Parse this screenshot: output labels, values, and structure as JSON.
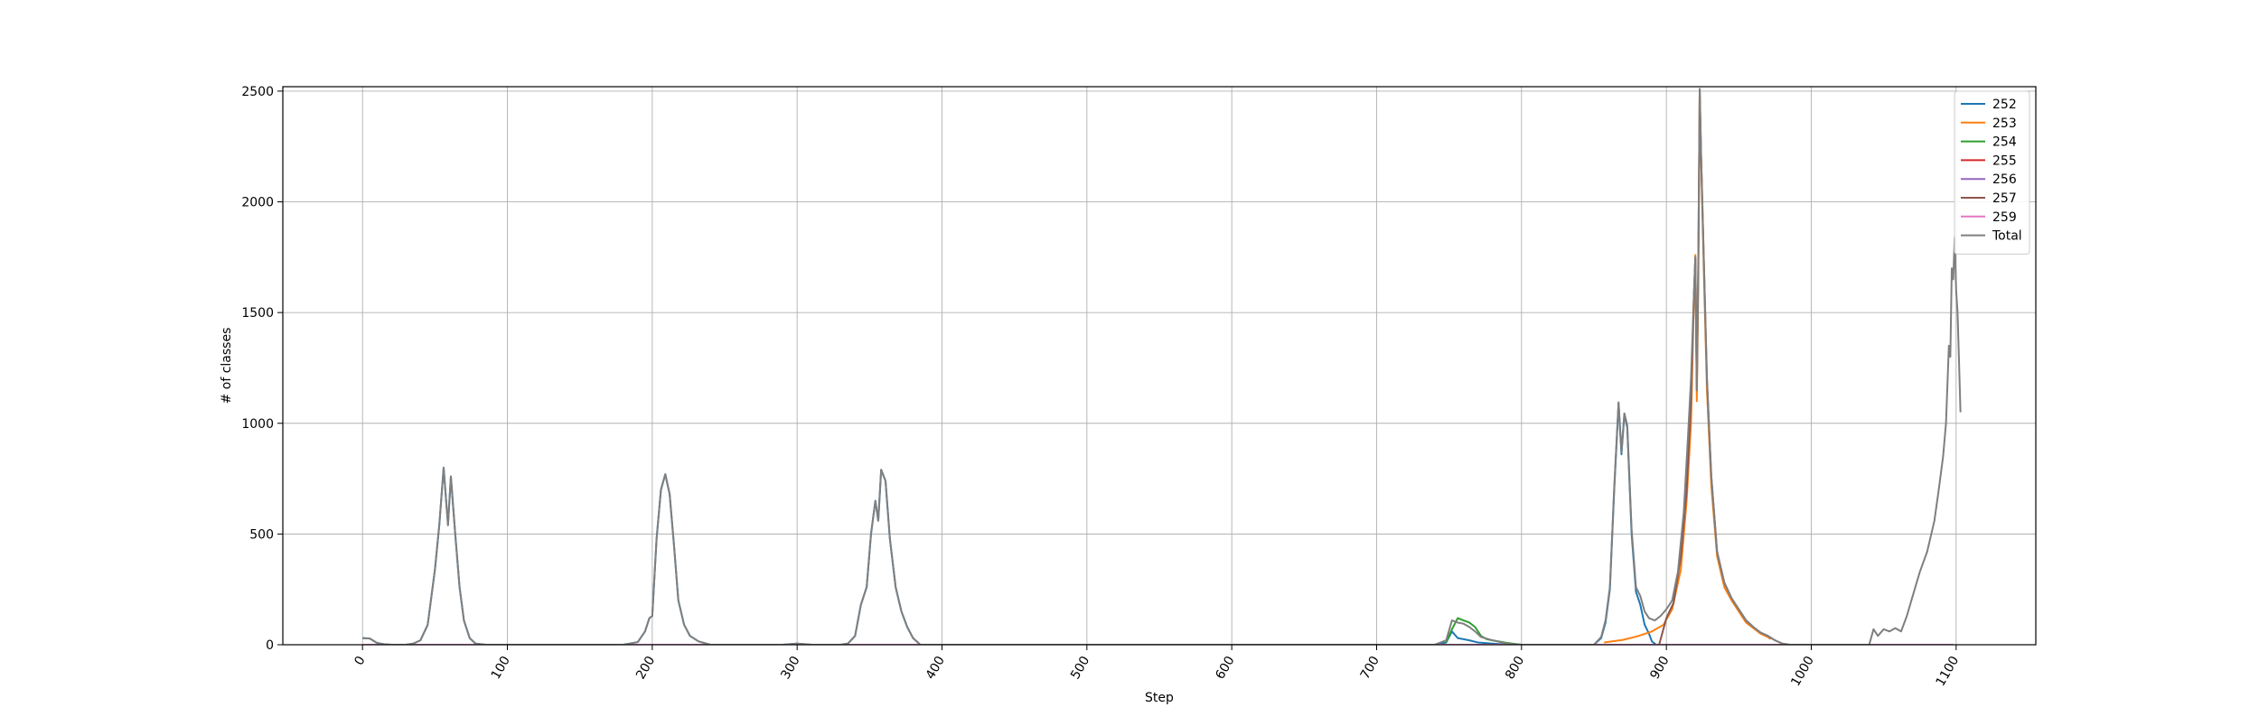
{
  "chart_data": {
    "type": "line",
    "xlabel": "Step",
    "ylabel": "# of classes",
    "xlim": [
      -55,
      1155
    ],
    "ylim": [
      0,
      2520
    ],
    "xticks": [
      0,
      100,
      200,
      300,
      400,
      500,
      600,
      700,
      800,
      900,
      1000,
      1100
    ],
    "yticks": [
      0,
      500,
      1000,
      1500,
      2000,
      2500
    ],
    "x_tick_rotation": 60,
    "grid": true,
    "legend_position": "top-right",
    "series": [
      {
        "name": "252",
        "color": "#1f77b4",
        "points": [
          [
            0,
            30
          ],
          [
            5,
            28
          ],
          [
            10,
            8
          ],
          [
            15,
            2
          ],
          [
            20,
            0
          ],
          [
            30,
            0
          ],
          [
            35,
            5
          ],
          [
            40,
            20
          ],
          [
            45,
            90
          ],
          [
            50,
            340
          ],
          [
            53,
            540
          ],
          [
            56,
            800
          ],
          [
            59,
            540
          ],
          [
            61,
            760
          ],
          [
            64,
            500
          ],
          [
            67,
            260
          ],
          [
            70,
            110
          ],
          [
            74,
            30
          ],
          [
            78,
            5
          ],
          [
            85,
            0
          ],
          [
            180,
            0
          ],
          [
            190,
            12
          ],
          [
            195,
            60
          ],
          [
            198,
            120
          ],
          [
            200,
            130
          ],
          [
            203,
            480
          ],
          [
            206,
            700
          ],
          [
            209,
            770
          ],
          [
            212,
            680
          ],
          [
            215,
            450
          ],
          [
            218,
            200
          ],
          [
            222,
            90
          ],
          [
            226,
            40
          ],
          [
            232,
            15
          ],
          [
            240,
            0
          ],
          [
            290,
            0
          ],
          [
            300,
            5
          ],
          [
            310,
            0
          ],
          [
            330,
            0
          ],
          [
            335,
            5
          ],
          [
            340,
            40
          ],
          [
            344,
            180
          ],
          [
            348,
            260
          ],
          [
            351,
            500
          ],
          [
            354,
            650
          ],
          [
            356,
            560
          ],
          [
            358,
            790
          ],
          [
            361,
            740
          ],
          [
            364,
            480
          ],
          [
            368,
            260
          ],
          [
            372,
            150
          ],
          [
            376,
            80
          ],
          [
            380,
            30
          ],
          [
            385,
            0
          ],
          [
            740,
            0
          ],
          [
            748,
            10
          ],
          [
            752,
            60
          ],
          [
            756,
            30
          ],
          [
            760,
            25
          ],
          [
            764,
            20
          ],
          [
            770,
            10
          ],
          [
            780,
            5
          ],
          [
            790,
            0
          ],
          [
            850,
            0
          ],
          [
            855,
            30
          ],
          [
            858,
            100
          ],
          [
            861,
            250
          ],
          [
            864,
            700
          ],
          [
            867,
            1090
          ],
          [
            869,
            860
          ],
          [
            871,
            1040
          ],
          [
            873,
            980
          ],
          [
            876,
            500
          ],
          [
            879,
            240
          ],
          [
            882,
            180
          ],
          [
            885,
            90
          ],
          [
            888,
            50
          ],
          [
            890,
            15
          ],
          [
            893,
            0
          ],
          [
            1098,
            0
          ]
        ]
      },
      {
        "name": "253",
        "color": "#ff7f0e",
        "points": [
          [
            857,
            10
          ],
          [
            870,
            22
          ],
          [
            880,
            38
          ],
          [
            890,
            60
          ],
          [
            898,
            90
          ],
          [
            904,
            160
          ],
          [
            910,
            340
          ],
          [
            914,
            650
          ],
          [
            917,
            1000
          ],
          [
            919,
            1560
          ],
          [
            920,
            1760
          ],
          [
            921,
            1100
          ],
          [
            922,
            1600
          ],
          [
            923,
            2500
          ],
          [
            924,
            2180
          ],
          [
            926,
            1650
          ],
          [
            928,
            1150
          ],
          [
            931,
            720
          ],
          [
            935,
            400
          ],
          [
            940,
            260
          ],
          [
            945,
            200
          ],
          [
            950,
            150
          ],
          [
            955,
            100
          ],
          [
            960,
            75
          ],
          [
            965,
            50
          ],
          [
            970,
            35
          ],
          [
            972,
            25
          ]
        ]
      },
      {
        "name": "254",
        "color": "#2ca02c",
        "points": [
          [
            748,
            10
          ],
          [
            752,
            70
          ],
          [
            756,
            120
          ],
          [
            760,
            110
          ],
          [
            764,
            100
          ],
          [
            768,
            80
          ],
          [
            772,
            40
          ],
          [
            776,
            25
          ],
          [
            780,
            20
          ],
          [
            790,
            8
          ],
          [
            800,
            0
          ]
        ]
      },
      {
        "name": "255",
        "color": "#d62728",
        "points": [
          [
            0,
            0
          ],
          [
            1098,
            0
          ]
        ]
      },
      {
        "name": "256",
        "color": "#9467bd",
        "points": [
          [
            0,
            0
          ],
          [
            1098,
            0
          ]
        ]
      },
      {
        "name": "257",
        "color": "#8c564b",
        "points": [
          [
            895,
            0
          ],
          [
            900,
            120
          ],
          [
            905,
            190
          ],
          [
            910,
            400
          ],
          [
            914,
            700
          ],
          [
            917,
            1100
          ],
          [
            919,
            1580
          ],
          [
            920,
            1750
          ],
          [
            921,
            1150
          ],
          [
            922,
            1700
          ],
          [
            923,
            2510
          ],
          [
            924,
            2200
          ],
          [
            926,
            1700
          ],
          [
            928,
            1200
          ],
          [
            931,
            760
          ],
          [
            935,
            420
          ],
          [
            940,
            280
          ],
          [
            945,
            210
          ],
          [
            950,
            160
          ],
          [
            955,
            110
          ],
          [
            960,
            80
          ],
          [
            965,
            55
          ],
          [
            970,
            40
          ],
          [
            975,
            20
          ],
          [
            980,
            5
          ],
          [
            985,
            0
          ]
        ]
      },
      {
        "name": "259",
        "color": "#e377c2",
        "points": [
          [
            0,
            0
          ],
          [
            1098,
            0
          ]
        ]
      },
      {
        "name": "Total",
        "color": "#7f7f7f",
        "points": [
          [
            0,
            30
          ],
          [
            5,
            28
          ],
          [
            10,
            8
          ],
          [
            15,
            2
          ],
          [
            20,
            0
          ],
          [
            30,
            0
          ],
          [
            35,
            5
          ],
          [
            40,
            20
          ],
          [
            45,
            90
          ],
          [
            50,
            340
          ],
          [
            53,
            540
          ],
          [
            56,
            800
          ],
          [
            59,
            540
          ],
          [
            61,
            760
          ],
          [
            64,
            500
          ],
          [
            67,
            260
          ],
          [
            70,
            110
          ],
          [
            74,
            30
          ],
          [
            78,
            5
          ],
          [
            85,
            0
          ],
          [
            180,
            0
          ],
          [
            190,
            12
          ],
          [
            195,
            60
          ],
          [
            198,
            120
          ],
          [
            200,
            130
          ],
          [
            203,
            480
          ],
          [
            206,
            700
          ],
          [
            209,
            770
          ],
          [
            212,
            680
          ],
          [
            215,
            450
          ],
          [
            218,
            200
          ],
          [
            222,
            90
          ],
          [
            226,
            40
          ],
          [
            232,
            15
          ],
          [
            240,
            0
          ],
          [
            290,
            0
          ],
          [
            300,
            5
          ],
          [
            310,
            0
          ],
          [
            330,
            0
          ],
          [
            335,
            5
          ],
          [
            340,
            40
          ],
          [
            344,
            180
          ],
          [
            348,
            260
          ],
          [
            351,
            500
          ],
          [
            354,
            650
          ],
          [
            356,
            560
          ],
          [
            358,
            790
          ],
          [
            361,
            740
          ],
          [
            364,
            480
          ],
          [
            368,
            260
          ],
          [
            372,
            150
          ],
          [
            376,
            80
          ],
          [
            380,
            30
          ],
          [
            385,
            0
          ],
          [
            740,
            0
          ],
          [
            748,
            20
          ],
          [
            752,
            110
          ],
          [
            756,
            100
          ],
          [
            760,
            95
          ],
          [
            764,
            80
          ],
          [
            768,
            60
          ],
          [
            772,
            35
          ],
          [
            780,
            20
          ],
          [
            790,
            5
          ],
          [
            800,
            0
          ],
          [
            850,
            0
          ],
          [
            855,
            35
          ],
          [
            858,
            110
          ],
          [
            861,
            260
          ],
          [
            864,
            710
          ],
          [
            867,
            1095
          ],
          [
            869,
            870
          ],
          [
            871,
            1045
          ],
          [
            873,
            990
          ],
          [
            876,
            520
          ],
          [
            879,
            260
          ],
          [
            882,
            220
          ],
          [
            885,
            150
          ],
          [
            888,
            120
          ],
          [
            892,
            110
          ],
          [
            896,
            130
          ],
          [
            900,
            160
          ],
          [
            904,
            200
          ],
          [
            908,
            330
          ],
          [
            912,
            600
          ],
          [
            915,
            950
          ],
          [
            917,
            1200
          ],
          [
            919,
            1580
          ],
          [
            920,
            1750
          ],
          [
            921,
            1150
          ],
          [
            922,
            1700
          ],
          [
            923,
            2510
          ],
          [
            924,
            2200
          ],
          [
            926,
            1700
          ],
          [
            928,
            1200
          ],
          [
            931,
            760
          ],
          [
            935,
            420
          ],
          [
            940,
            280
          ],
          [
            945,
            210
          ],
          [
            950,
            160
          ],
          [
            955,
            110
          ],
          [
            960,
            80
          ],
          [
            965,
            55
          ],
          [
            970,
            40
          ],
          [
            975,
            20
          ],
          [
            980,
            5
          ],
          [
            985,
            0
          ],
          [
            1040,
            0
          ],
          [
            1043,
            70
          ],
          [
            1046,
            40
          ],
          [
            1050,
            70
          ],
          [
            1054,
            60
          ],
          [
            1058,
            75
          ],
          [
            1062,
            60
          ],
          [
            1066,
            130
          ],
          [
            1070,
            220
          ],
          [
            1075,
            330
          ],
          [
            1080,
            420
          ],
          [
            1085,
            560
          ],
          [
            1088,
            700
          ],
          [
            1091,
            850
          ],
          [
            1093,
            1000
          ],
          [
            1095,
            1350
          ],
          [
            1096,
            1300
          ],
          [
            1097,
            1700
          ],
          [
            1098,
            1650
          ],
          [
            1099,
            1840
          ],
          [
            1100,
            1600
          ],
          [
            1101,
            1500
          ],
          [
            1102,
            1280
          ],
          [
            1103,
            1050
          ]
        ]
      }
    ]
  }
}
